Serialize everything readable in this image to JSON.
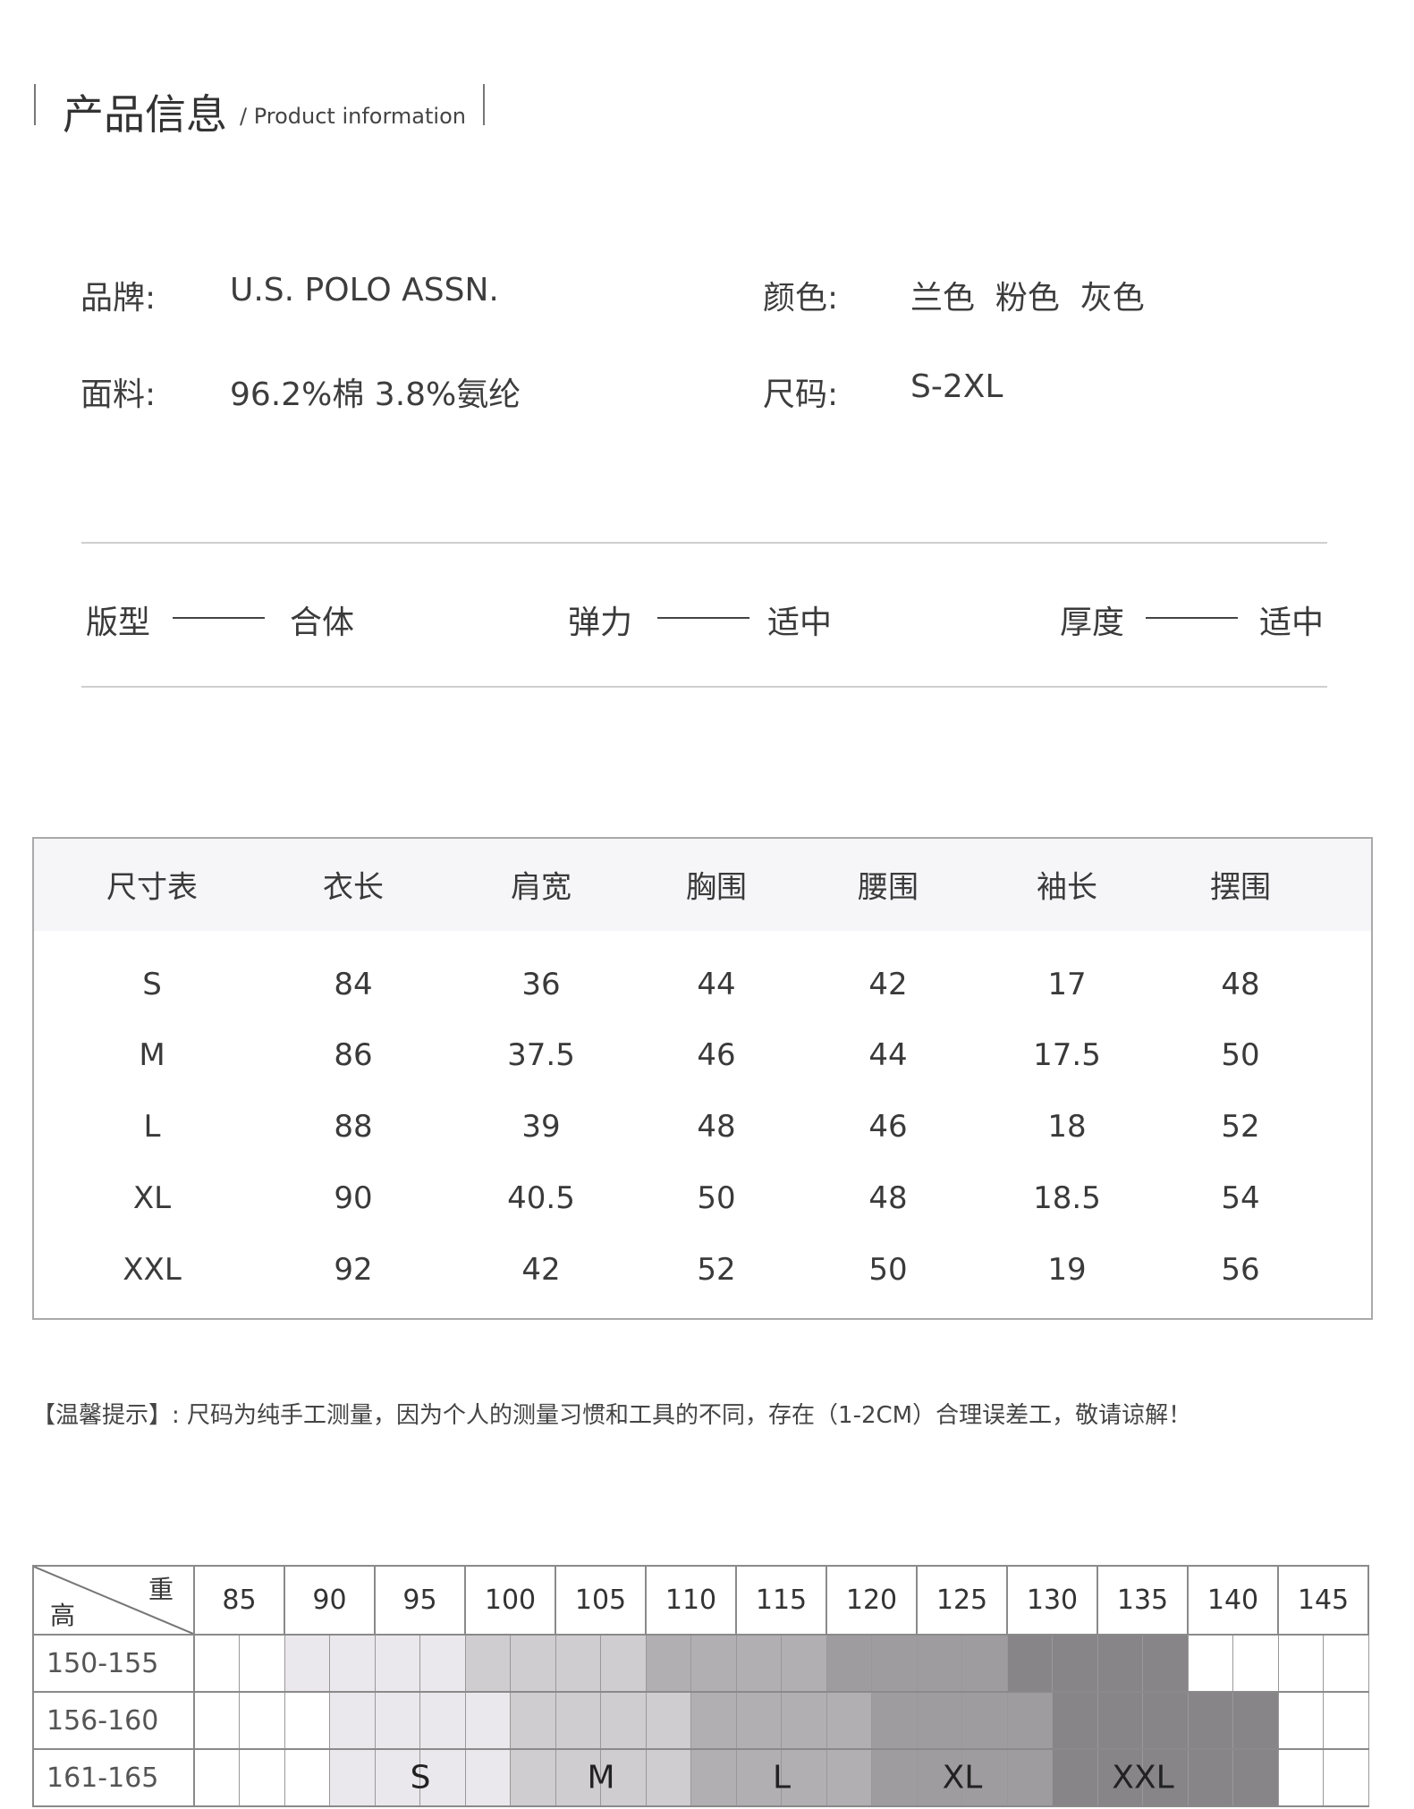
{
  "header": {
    "title": "产品信息",
    "subtitle": "/ Product information"
  },
  "info": {
    "brand_label": "品牌:",
    "brand": "U.S. POLO ASSN.",
    "color_label": "颜色:",
    "colors": "兰色  粉色  灰色",
    "fabric_label": "面料:",
    "fabric": "96.2%棉 3.8%氨纶",
    "size_label": "尺码:",
    "sizes": "S-2XL"
  },
  "attributes": [
    {
      "label": "版型",
      "value": "合体"
    },
    {
      "label": "弹力",
      "value": "适中"
    },
    {
      "label": "厚度",
      "value": "适中"
    }
  ],
  "size_table": {
    "headers": [
      "尺寸表",
      "衣长",
      "肩宽",
      "胸围",
      "腰围",
      "袖长",
      "摆围"
    ],
    "rows": [
      [
        "S",
        "84",
        "36",
        "44",
        "42",
        "17",
        "48"
      ],
      [
        "M",
        "86",
        "37.5",
        "46",
        "44",
        "17.5",
        "50"
      ],
      [
        "L",
        "88",
        "39",
        "48",
        "46",
        "18",
        "52"
      ],
      [
        "XL",
        "90",
        "40.5",
        "50",
        "48",
        "18.5",
        "54"
      ],
      [
        "XXL",
        "92",
        "42",
        "52",
        "50",
        "19",
        "56"
      ]
    ]
  },
  "tip": "【温馨提示】: 尺码为纯手工测量，因为个人的测量习惯和工具的不同，存在（1-2CM）合理误差工，敬请谅解！",
  "grid": {
    "weight_label": "重",
    "height_label": "高",
    "weights": [
      "85",
      "90",
      "95",
      "100",
      "105",
      "110",
      "115",
      "120",
      "125",
      "130",
      "135",
      "140",
      "145"
    ],
    "heights": [
      "150-155",
      "156-160",
      "161-165"
    ],
    "shade_colors": [
      "#ffffff",
      "#eae8ec",
      "#cfcdd0",
      "#b1afb2",
      "#9e9c9f",
      "#878588"
    ],
    "shading": [
      [
        0,
        0,
        1,
        1,
        1,
        1,
        2,
        2,
        2,
        2,
        3,
        3,
        3,
        3,
        4,
        4,
        4,
        4,
        5,
        5,
        5,
        5,
        0,
        0,
        0,
        0
      ],
      [
        0,
        0,
        0,
        1,
        1,
        1,
        1,
        2,
        2,
        2,
        2,
        3,
        3,
        3,
        3,
        4,
        4,
        4,
        4,
        5,
        5,
        5,
        5,
        5,
        0,
        0
      ],
      [
        0,
        0,
        0,
        1,
        1,
        1,
        1,
        2,
        2,
        2,
        2,
        3,
        3,
        3,
        3,
        4,
        4,
        4,
        4,
        5,
        5,
        5,
        5,
        5,
        0,
        0
      ]
    ],
    "size_labels": [
      {
        "label": "S",
        "half_col": 5
      },
      {
        "label": "M",
        "half_col": 9
      },
      {
        "label": "L",
        "half_col": 13
      },
      {
        "label": "XL",
        "half_col": 17
      },
      {
        "label": "XXL",
        "half_col": 21
      }
    ]
  }
}
